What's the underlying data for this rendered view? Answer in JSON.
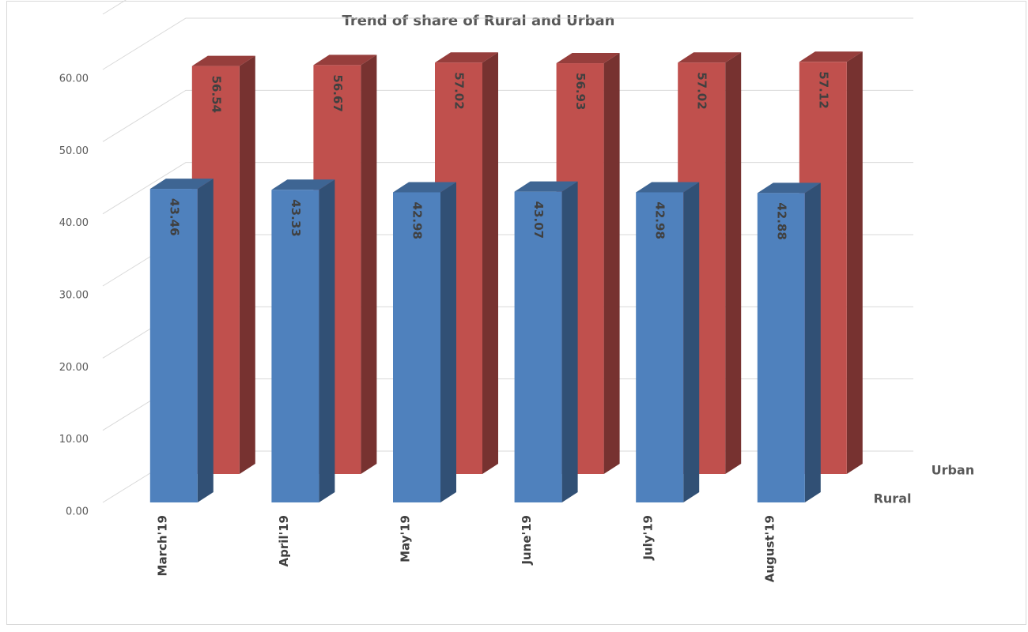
{
  "chart_data": {
    "type": "bar3d",
    "title": "Trend of  share of Rural and Urban",
    "categories": [
      "March'19",
      "April'19",
      "May'19",
      "June'19",
      "July'19",
      "August'19"
    ],
    "series": [
      {
        "name": "Rural",
        "color": "#4f81bd",
        "values": [
          43.46,
          43.33,
          42.98,
          43.07,
          42.98,
          42.88
        ]
      },
      {
        "name": "Urban",
        "color": "#c0504d",
        "values": [
          56.54,
          56.67,
          57.02,
          56.93,
          57.02,
          57.12
        ]
      }
    ],
    "ylim": [
      0,
      60
    ],
    "yticks": [
      {
        "value": 0,
        "label": "0.00"
      },
      {
        "value": 10,
        "label": "10.00"
      },
      {
        "value": 20,
        "label": "20.00"
      },
      {
        "value": 30,
        "label": "30.00"
      },
      {
        "value": 40,
        "label": "40.00"
      },
      {
        "value": 50,
        "label": "50.00"
      },
      {
        "value": 60,
        "label": "60.00"
      }
    ],
    "grid": true
  }
}
